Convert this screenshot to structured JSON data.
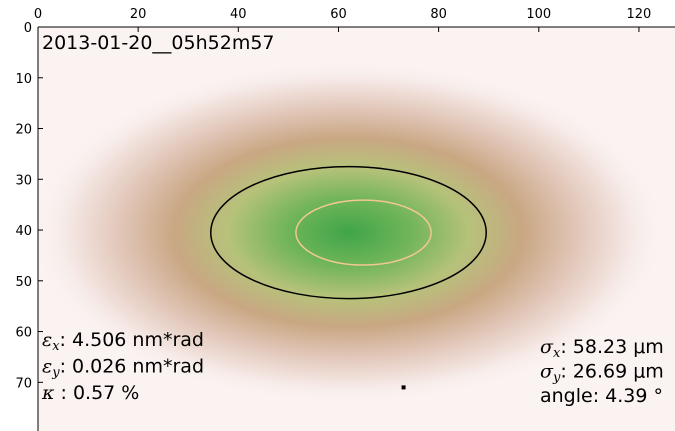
{
  "chart_data": {
    "type": "image",
    "title": "2013-01-20__05h52m57",
    "xlim": [
      0,
      127
    ],
    "ylim": [
      0,
      79
    ],
    "xticks": [
      0,
      20,
      40,
      60,
      80,
      100,
      120
    ],
    "yticks": [
      0,
      10,
      20,
      30,
      40,
      50,
      60,
      70
    ],
    "ellipses": [
      {
        "cx": 62,
        "cy": 40.5,
        "rx": 27.5,
        "ry": 13,
        "color": "#000000"
      },
      {
        "cx": 65,
        "cy": 40.5,
        "rx": 13.5,
        "ry": 6.4,
        "color": "#f0c890"
      }
    ],
    "points": [
      {
        "x": 73,
        "y": 71,
        "color": "#000000"
      }
    ],
    "annotations_left": [
      {
        "symbol": "ε",
        "sub": "x",
        "text": ": 4.506 nm*rad"
      },
      {
        "symbol": "ε",
        "sub": "y",
        "text": ": 0.026 nm*rad"
      },
      {
        "symbol": "κ",
        "text": " : 0.57 %"
      }
    ],
    "annotations_right": [
      {
        "symbol": "σ",
        "sub": "x",
        "text": ": 58.23 μm"
      },
      {
        "symbol": "σ",
        "sub": "y",
        "text": ": 26.69 μm"
      },
      {
        "text": "angle: 4.39 °"
      }
    ]
  }
}
